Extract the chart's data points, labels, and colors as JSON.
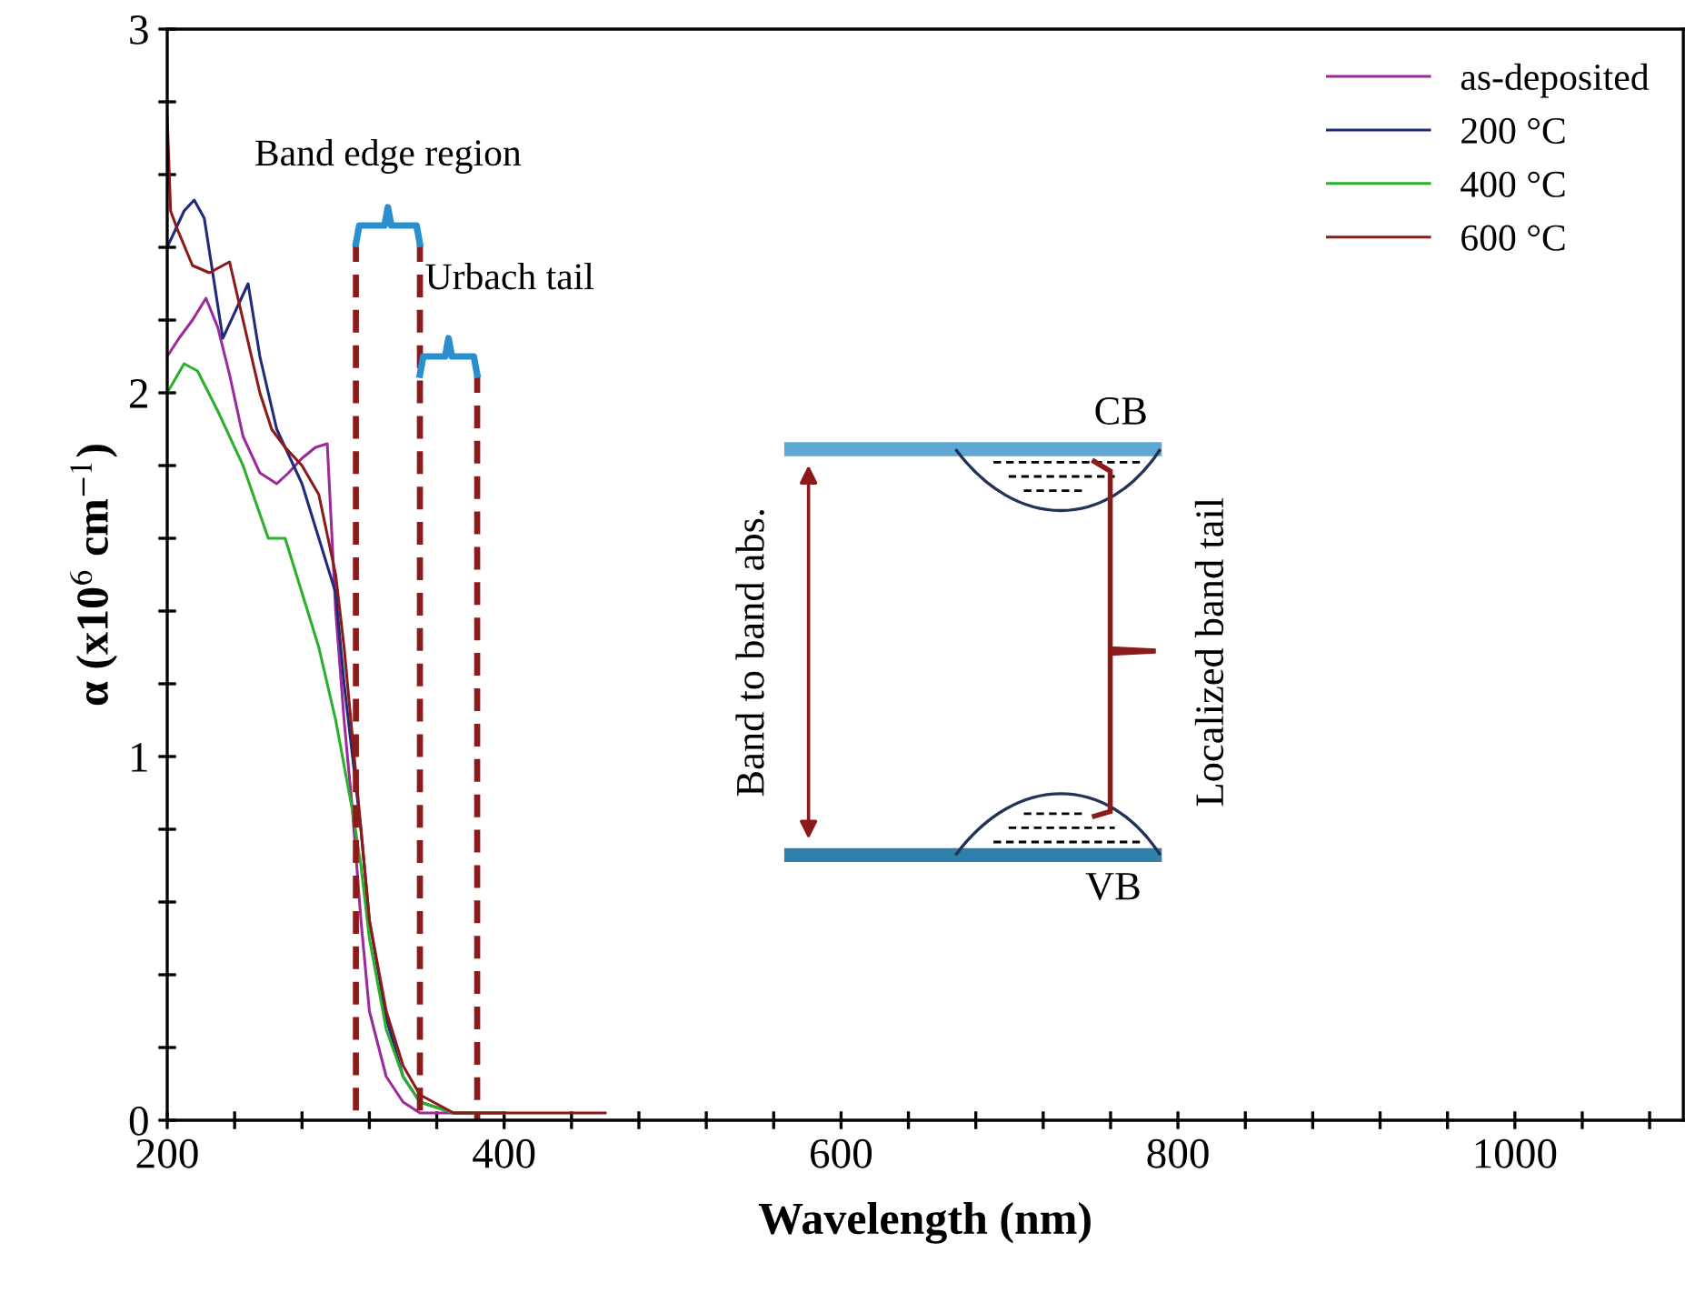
{
  "chart_data": {
    "type": "line",
    "xlabel": "Wavelength (nm)",
    "ylabel": "α (x10$^{6}$ cm$^{−1}$)",
    "xlim": [
      200,
      1100
    ],
    "ylim": [
      0,
      3
    ],
    "xticks": [
      200,
      {
        "value": 240,
        "label": null
      },
      {
        "value": 280,
        "label": null
      },
      {
        "value": 320,
        "label": null
      },
      {
        "value": 360,
        "label": null
      },
      400,
      {
        "value": 440,
        "label": null
      },
      {
        "value": 480,
        "label": null
      },
      {
        "value": 520,
        "label": null
      },
      {
        "value": 560,
        "label": null
      },
      600,
      {
        "value": 640,
        "label": null
      },
      {
        "value": 680,
        "label": null
      },
      {
        "value": 720,
        "label": null
      },
      {
        "value": 760,
        "label": null
      },
      800,
      {
        "value": 840,
        "label": null
      },
      {
        "value": 880,
        "label": null
      },
      {
        "value": 920,
        "label": null
      },
      {
        "value": 960,
        "label": null
      },
      1000,
      {
        "value": 1040,
        "label": null
      },
      {
        "value": 1080,
        "label": null
      }
    ],
    "yticks": [
      0,
      {
        "value": 0.2,
        "label": null
      },
      {
        "value": 0.4,
        "label": null
      },
      {
        "value": 0.6,
        "label": null
      },
      {
        "value": 0.8,
        "label": null
      },
      1,
      {
        "value": 1.2,
        "label": null
      },
      {
        "value": 1.4,
        "label": null
      },
      {
        "value": 1.6,
        "label": null
      },
      {
        "value": 1.8,
        "label": null
      },
      2,
      {
        "value": 2.2,
        "label": null
      },
      {
        "value": 2.4,
        "label": null
      },
      {
        "value": 2.6,
        "label": null
      },
      {
        "value": 2.8,
        "label": null
      },
      3
    ],
    "grid": false,
    "legend": "top right",
    "marker": "none",
    "series": [
      {
        "name": "as-deposited",
        "color": "#9b2a9b",
        "line_style": "solid",
        "x": [
          200,
          207,
          215,
          223,
          230,
          237,
          245,
          255,
          265,
          272,
          280,
          288,
          295,
          300,
          305,
          310,
          315,
          320,
          330,
          340,
          350,
          380
        ],
        "values": [
          2.1,
          2.15,
          2.2,
          2.26,
          2.18,
          2.05,
          1.88,
          1.78,
          1.75,
          1.78,
          1.82,
          1.85,
          1.86,
          1.4,
          1.1,
          0.85,
          0.55,
          0.3,
          0.12,
          0.05,
          0.02,
          0.02
        ]
      },
      {
        "name": "200 °C",
        "color": "#1f2a7a",
        "line_style": "solid",
        "x": [
          200,
          205,
          210,
          216,
          222,
          228,
          233,
          240,
          248,
          255,
          265,
          280,
          290,
          300,
          305,
          310,
          315,
          320,
          330,
          340,
          350,
          370,
          400
        ],
        "values": [
          2.4,
          2.45,
          2.5,
          2.53,
          2.48,
          2.3,
          2.15,
          2.22,
          2.3,
          2.1,
          1.9,
          1.75,
          1.6,
          1.45,
          1.2,
          1.0,
          0.8,
          0.55,
          0.28,
          0.12,
          0.05,
          0.02,
          0.02
        ]
      },
      {
        "name": "400 °C",
        "color": "#2bb02b",
        "line_style": "solid",
        "x": [
          200,
          210,
          218,
          230,
          245,
          260,
          270,
          280,
          290,
          300,
          310,
          315,
          320,
          330,
          340,
          350,
          370,
          400
        ],
        "values": [
          2.0,
          2.08,
          2.06,
          1.95,
          1.8,
          1.6,
          1.6,
          1.45,
          1.3,
          1.1,
          0.85,
          0.7,
          0.5,
          0.25,
          0.12,
          0.05,
          0.02,
          0.02
        ]
      },
      {
        "name": "600 °C",
        "color": "#8b1a1a",
        "line_style": "solid",
        "x": [
          200,
          202,
          206,
          215,
          225,
          237,
          245,
          255,
          262,
          270,
          280,
          290,
          300,
          305,
          310,
          315,
          320,
          330,
          340,
          350,
          370,
          460
        ],
        "values": [
          2.76,
          2.5,
          2.45,
          2.35,
          2.33,
          2.36,
          2.2,
          2.0,
          1.9,
          1.85,
          1.8,
          1.72,
          1.5,
          1.3,
          1.05,
          0.8,
          0.55,
          0.3,
          0.15,
          0.07,
          0.02,
          0.02
        ]
      },
      {
        "color": "#8b1a1a",
        "line_style": "dashed",
        "x": [
          312,
          312
        ],
        "values": [
          0,
          2.41
        ]
      },
      {
        "color": "#8b1a1a",
        "line_style": "dashed",
        "x": [
          350,
          350
        ],
        "values": [
          0,
          2.41
        ]
      },
      {
        "color": "#8b1a1a",
        "line_style": "dashed",
        "x": [
          384,
          384
        ],
        "values": [
          0,
          2.05
        ]
      }
    ],
    "annotations": [
      "Band edge region",
      "Urbach tail",
      "CB",
      "VB",
      "Band to band abs.",
      "Localized band tail"
    ]
  }
}
